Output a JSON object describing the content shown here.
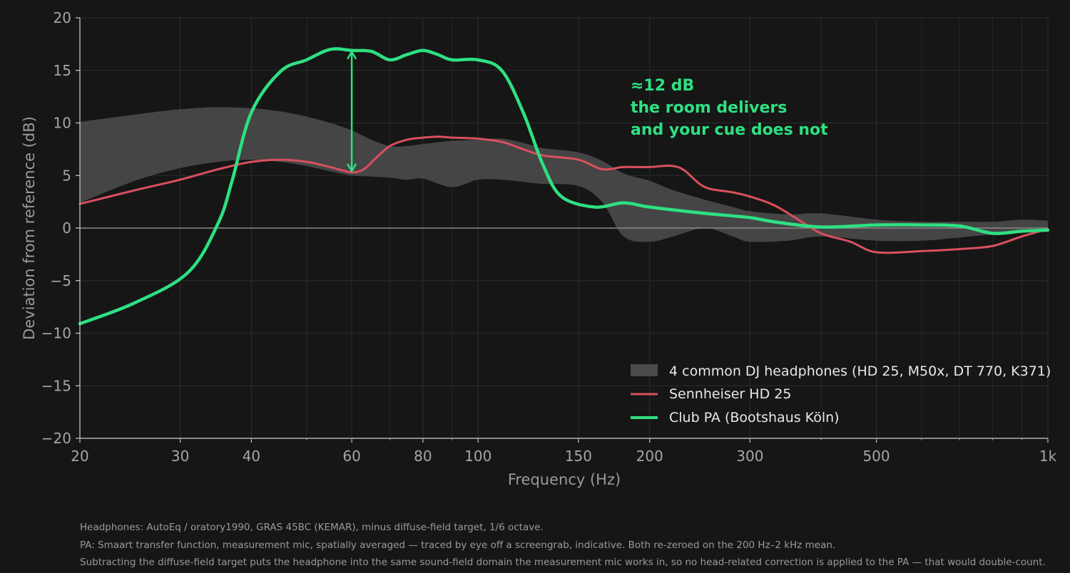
{
  "chart_data": {
    "type": "line",
    "xscale": "log",
    "xlim": [
      20,
      1000
    ],
    "ylim": [
      -20,
      20
    ],
    "xlabel": "Frequency (Hz)",
    "ylabel": "Deviation from reference (dB)",
    "grid": true,
    "legend_position": "bottom-right",
    "x_ticks": [
      {
        "value": 20,
        "label": "20"
      },
      {
        "value": 30,
        "label": "30"
      },
      {
        "value": 40,
        "label": "40"
      },
      {
        "value": 60,
        "label": "60"
      },
      {
        "value": 80,
        "label": "80"
      },
      {
        "value": 100,
        "label": "100"
      },
      {
        "value": 150,
        "label": "150"
      },
      {
        "value": 200,
        "label": "200"
      },
      {
        "value": 300,
        "label": "300"
      },
      {
        "value": 500,
        "label": "500"
      },
      {
        "value": 1000,
        "label": "1k"
      }
    ],
    "y_ticks": [
      {
        "value": 20,
        "label": "20"
      },
      {
        "value": 15,
        "label": "15"
      },
      {
        "value": 10,
        "label": "10"
      },
      {
        "value": 5,
        "label": "5"
      },
      {
        "value": 0,
        "label": "0"
      },
      {
        "value": -5,
        "label": "−5"
      },
      {
        "value": -10,
        "label": "−10"
      },
      {
        "value": -15,
        "label": "−15"
      },
      {
        "value": -20,
        "label": "−20"
      }
    ],
    "band": {
      "name": "4 common DJ headphones (HD 25, M50x, DT 770, K371)",
      "color": "#4a4a4a",
      "x": [
        20,
        25,
        30,
        35,
        40,
        45,
        50,
        55,
        60,
        65,
        70,
        75,
        80,
        90,
        100,
        110,
        120,
        130,
        150,
        165,
        180,
        200,
        220,
        250,
        280,
        300,
        350,
        400,
        500,
        600,
        700,
        800,
        900,
        1000
      ],
      "upper": [
        10.1,
        10.8,
        11.3,
        11.5,
        11.4,
        11.1,
        10.6,
        10.0,
        9.3,
        8.4,
        7.8,
        7.8,
        8.0,
        8.3,
        8.4,
        8.5,
        8.1,
        7.6,
        7.2,
        6.4,
        5.2,
        4.5,
        3.6,
        2.7,
        2.0,
        1.6,
        1.3,
        1.4,
        0.8,
        0.6,
        0.6,
        0.6,
        0.8,
        0.7
      ],
      "lower": [
        2.4,
        4.5,
        5.7,
        6.3,
        6.5,
        6.3,
        5.9,
        5.4,
        5.0,
        4.9,
        4.8,
        4.6,
        4.7,
        3.9,
        4.6,
        4.6,
        4.4,
        4.2,
        4.0,
        2.5,
        -0.8,
        -1.3,
        -0.8,
        0.0,
        -0.8,
        -1.3,
        -1.2,
        -0.8,
        -1.2,
        -1.2,
        -0.9,
        -0.6,
        -0.4,
        -0.2
      ]
    },
    "series": [
      {
        "name": "Sennheiser HD 25",
        "color": "#d9505f",
        "x": [
          20,
          25,
          30,
          35,
          40,
          45,
          50,
          55,
          60,
          63,
          66,
          70,
          75,
          80,
          85,
          90,
          100,
          110,
          120,
          130,
          150,
          165,
          180,
          200,
          210,
          220,
          230,
          250,
          280,
          300,
          330,
          360,
          400,
          450,
          500,
          600,
          700,
          800,
          900,
          1000
        ],
        "values": [
          2.3,
          3.6,
          4.6,
          5.6,
          6.3,
          6.5,
          6.3,
          5.8,
          5.3,
          5.6,
          6.6,
          7.8,
          8.4,
          8.6,
          8.7,
          8.6,
          8.5,
          8.2,
          7.5,
          6.9,
          6.5,
          5.6,
          5.8,
          5.8,
          5.9,
          5.9,
          5.5,
          3.9,
          3.4,
          3.0,
          2.2,
          1.0,
          -0.5,
          -1.3,
          -2.3,
          -2.2,
          -2.0,
          -1.7,
          -0.8,
          -0.1
        ]
      },
      {
        "name": "Club PA (Bootshaus Köln)",
        "color": "#2ee082",
        "x": [
          20,
          25,
          31,
          35,
          37,
          40,
          45,
          50,
          55,
          60,
          65,
          70,
          75,
          80,
          85,
          90,
          100,
          110,
          120,
          130,
          140,
          160,
          180,
          200,
          250,
          300,
          330,
          400,
          500,
          600,
          700,
          800,
          900,
          1000
        ],
        "values": [
          -9.1,
          -7.1,
          -4.2,
          0.5,
          4.5,
          11.0,
          14.9,
          16.0,
          17.0,
          16.9,
          16.8,
          16.0,
          16.5,
          16.9,
          16.5,
          16.0,
          16.0,
          15.0,
          11.0,
          6.0,
          3.0,
          2.0,
          2.4,
          2.0,
          1.4,
          1.0,
          0.6,
          0.1,
          0.3,
          0.3,
          0.2,
          -0.5,
          -0.3,
          -0.2
        ]
      }
    ],
    "annotation": {
      "arrow_x": 60,
      "arrow_from": 5.3,
      "arrow_to": 16.9,
      "lines": [
        "≈12 dB",
        "the room delivers",
        "and your cue does not"
      ]
    }
  },
  "notes": [
    "Headphones: AutoEq / oratory1990, GRAS 45BC (KEMAR), minus diffuse-field target, 1/6 octave.",
    "PA: Smaart transfer function, measurement mic, spatially averaged — traced by eye off a screengrab, indicative. Both re-zeroed on the 200 Hz–2 kHz mean.",
    "Subtracting the diffuse-field target puts the headphone into the same sound-field domain the measurement mic works in, so no head-related correction is applied to the PA — that would double-count."
  ]
}
